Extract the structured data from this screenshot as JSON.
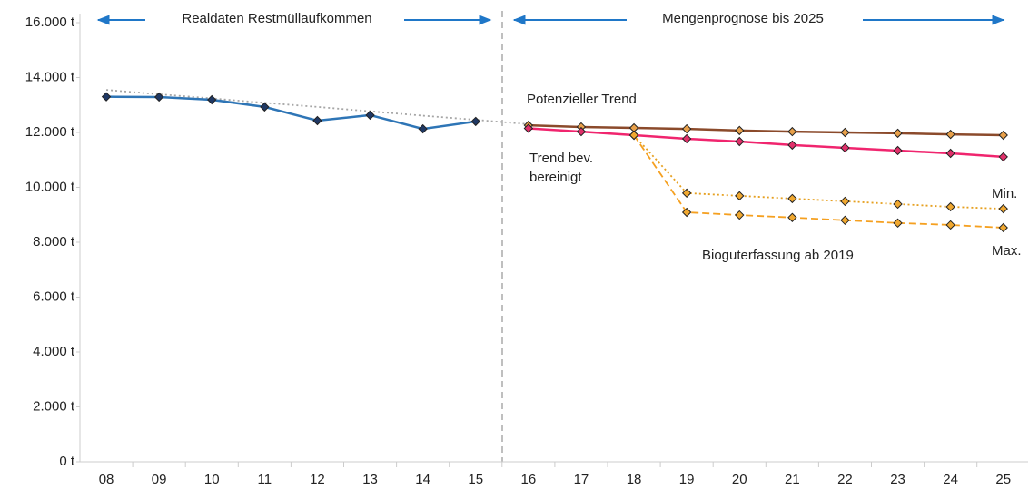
{
  "chart_data": {
    "type": "line",
    "headers": [
      "Realdaten Restmüllaufkommen",
      "Mengenprognose bis 2025"
    ],
    "annotations": [
      "Potenzieller Trend",
      "Trend bev.",
      "bereinigt",
      "Bioguterfassung ab 2019",
      "Min.",
      "Max."
    ],
    "categories": [
      "08",
      "09",
      "10",
      "11",
      "12",
      "13",
      "14",
      "15",
      "16",
      "17",
      "18",
      "19",
      "20",
      "21",
      "22",
      "23",
      "24",
      "25"
    ],
    "ylim": [
      0,
      16000
    ],
    "yticks": [
      {
        "value": 0,
        "label": "0 t"
      },
      {
        "value": 2000,
        "label": "2.000 t"
      },
      {
        "value": 4000,
        "label": "4.000 t"
      },
      {
        "value": 6000,
        "label": "6.000 t"
      },
      {
        "value": 8000,
        "label": "8.000 t"
      },
      {
        "value": 10000,
        "label": "10.000 t"
      },
      {
        "value": 12000,
        "label": "12.000 t"
      },
      {
        "value": 14000,
        "label": "14.000 t"
      },
      {
        "value": 16000,
        "label": "16.000 t"
      }
    ],
    "series": [
      {
        "color": "#a6a6a6",
        "linestyle": "dotted",
        "marker": "none",
        "values": [
          13550,
          13390,
          13240,
          13080,
          12930,
          12770,
          12610,
          12460,
          12300,
          null,
          null,
          null,
          null,
          null,
          null,
          null,
          null,
          null
        ]
      },
      {
        "color": "#2e75b6",
        "linestyle": "solid",
        "marker": "diamond",
        "marker_color": "#1f3864",
        "values": [
          13300,
          13290,
          13190,
          12930,
          12430,
          12630,
          12130,
          12400,
          null,
          null,
          null,
          null,
          null,
          null,
          null,
          null,
          null,
          null
        ]
      },
      {
        "color": "#8b4a2b",
        "linestyle": "solid",
        "marker": "diamond",
        "marker_color": "#e8a04a",
        "values": [
          null,
          null,
          null,
          null,
          null,
          null,
          null,
          null,
          12260,
          12200,
          12165,
          12130,
          12070,
          12030,
          12000,
          11970,
          11930,
          11900
        ]
      },
      {
        "color": "#f0256e",
        "linestyle": "solid",
        "marker": "diamond",
        "marker_color": "#e0306a",
        "values": [
          null,
          null,
          null,
          null,
          null,
          null,
          null,
          null,
          12150,
          12030,
          11900,
          11770,
          11670,
          11540,
          11440,
          11340,
          11240,
          11110
        ]
      },
      {
        "color": "#e6a020",
        "linestyle": "dotted",
        "marker": "diamond",
        "marker_color": "#f0a830",
        "values": [
          null,
          null,
          null,
          null,
          null,
          null,
          null,
          null,
          null,
          null,
          11900,
          9790,
          9690,
          9590,
          9490,
          9390,
          9290,
          9220
        ]
      },
      {
        "color": "#f5a020",
        "linestyle": "dashed",
        "marker": "diamond",
        "marker_color": "#f0a830",
        "values": [
          null,
          null,
          null,
          null,
          null,
          null,
          null,
          null,
          null,
          null,
          11900,
          9090,
          8990,
          8900,
          8800,
          8700,
          8630,
          8530
        ]
      }
    ]
  }
}
